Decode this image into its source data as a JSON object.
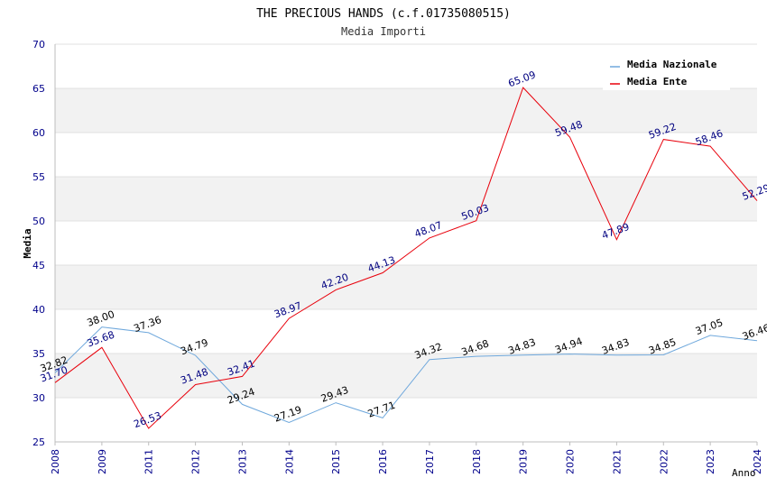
{
  "chart_data": {
    "type": "line",
    "title": "THE PRECIOUS HANDS (c.f.01735080515)",
    "subtitle": "Media Importi",
    "xlabel": "Anno",
    "ylabel": "Media",
    "ylim": [
      25,
      70
    ],
    "yticks": [
      25,
      30,
      35,
      40,
      45,
      50,
      55,
      60,
      65,
      70
    ],
    "grid": true,
    "legend_position": "top-right",
    "categories": [
      "2008",
      "2009",
      "2011",
      "2012",
      "2013",
      "2014",
      "2015",
      "2016",
      "2017",
      "2018",
      "2019",
      "2020",
      "2021",
      "2022",
      "2023",
      "2024"
    ],
    "series": [
      {
        "name": "Media Nazionale",
        "color": "#6fa8dc",
        "label_color": "#000000",
        "values": [
          32.82,
          38.0,
          37.36,
          34.79,
          29.24,
          27.19,
          29.43,
          27.71,
          34.32,
          34.68,
          34.83,
          34.94,
          34.83,
          34.85,
          37.05,
          36.46
        ],
        "labels": [
          "32.82",
          "38.00",
          "37.36",
          "34.79",
          "29.24",
          "27.19",
          "29.43",
          "27.71",
          "34.32",
          "34.68",
          "34.83",
          "34.94",
          "34.83",
          "34.85",
          "37.05",
          "36.46"
        ]
      },
      {
        "name": "Media Ente",
        "color": "#e8000b",
        "label_color": "#000080",
        "values": [
          31.7,
          35.68,
          26.53,
          31.48,
          32.41,
          38.97,
          42.2,
          44.13,
          48.07,
          50.03,
          65.09,
          59.48,
          47.89,
          59.22,
          58.46,
          52.29
        ],
        "labels": [
          "31.70",
          "35.68",
          "26.53",
          "31.48",
          "32.41",
          "38.97",
          "42.20",
          "44.13",
          "48.07",
          "50.03",
          "65.09",
          "59.48",
          "47.89",
          "59.22",
          "58.46",
          "52.29"
        ]
      }
    ],
    "band_colors": [
      "#ffffff",
      "#f2f2f2"
    ],
    "axis_tick_color": "#00008b",
    "title_color": "#000000",
    "subtitle_color": "#333333"
  }
}
